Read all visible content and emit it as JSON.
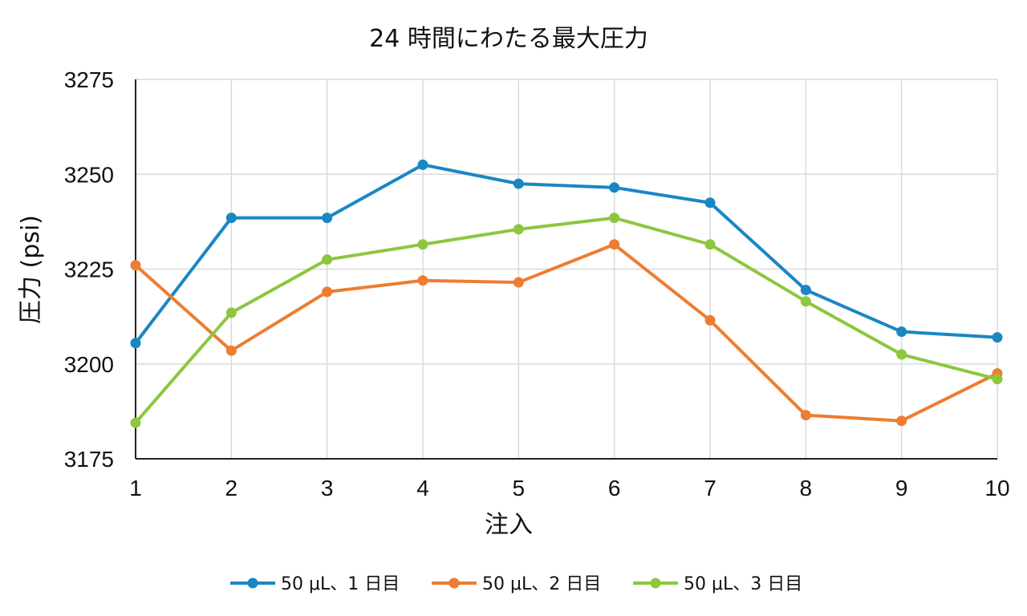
{
  "chart_data": {
    "type": "line",
    "title": "24 時間にわたる最大圧力",
    "xlabel": "注入",
    "ylabel": "圧力 (psi)",
    "x": [
      1,
      2,
      3,
      4,
      5,
      6,
      7,
      8,
      9,
      10
    ],
    "xlim": [
      1,
      10
    ],
    "ylim": [
      3175,
      3275
    ],
    "yticks": [
      3175,
      3200,
      3225,
      3250,
      3275
    ],
    "grid": true,
    "legend_position": "bottom",
    "series": [
      {
        "name": "50 μL、1 日目",
        "color": "#1a87c3",
        "values": [
          3205.5,
          3238.5,
          3238.5,
          3252.5,
          3247.5,
          3246.5,
          3242.5,
          3219.5,
          3208.5,
          3207
        ]
      },
      {
        "name": "50 μL、2 日目",
        "color": "#ed7d31",
        "values": [
          3226,
          3203.5,
          3219,
          3222,
          3221.5,
          3231.5,
          3211.5,
          3186.5,
          3185,
          3197.5
        ]
      },
      {
        "name": "50 μL、3 日目",
        "color": "#8dc63f",
        "values": [
          3184.5,
          3213.5,
          3227.5,
          3231.5,
          3235.5,
          3238.5,
          3231.5,
          3216.5,
          3202.5,
          3196
        ]
      }
    ]
  }
}
